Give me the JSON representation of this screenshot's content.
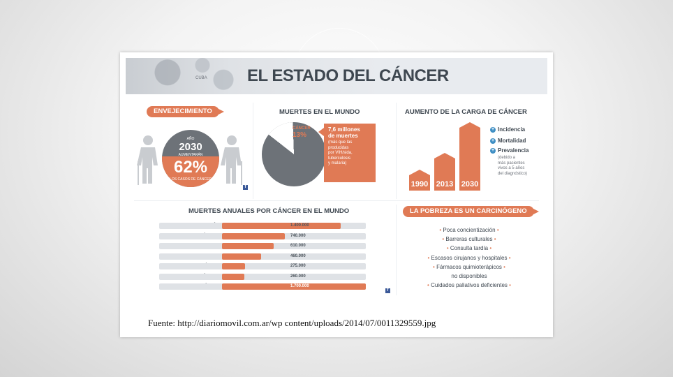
{
  "header": {
    "title": "EL ESTADO DEL CÁNCER",
    "map_label": "CUBA"
  },
  "aging": {
    "pill": "ENVEJECIMIENTO",
    "year_label": "AÑO",
    "year": "2030",
    "mid_label": "AUMENTARÁN",
    "percent": "62%",
    "bottom_label": "LOS CASOS DE CÁNCER"
  },
  "deaths_world": {
    "heading": "MUERTES EN EL MUNDO",
    "pie_label_1": "CÁNCER",
    "pie_label_2": "13%",
    "pie_share": 0.13,
    "callout_big": "7,6 millones\nde muertes",
    "callout_small": "(más que las\nproducidas\npor VIH/sida,\ntuberculosis\ny malaria)"
  },
  "burden": {
    "heading": "AUMENTO DE LA CARGA DE CÁNCER",
    "years": [
      "1990",
      "2013",
      "2030"
    ],
    "legend": [
      {
        "sign": "+",
        "label": "Incidencia"
      },
      {
        "sign": "+",
        "label": "Mortalidad"
      },
      {
        "sign": "+",
        "label": "Prevalencia"
      }
    ],
    "note": "(debido a\nmás pacientes\nvivos a 5 años\ndel diagnóstico)"
  },
  "annual_deaths": {
    "heading": "MUERTES ANUALES POR CÁNCER EN EL MUNDO",
    "max": 1700000,
    "rows": [
      {
        "label": "PULMÓN",
        "value": 1400000,
        "display": "1.400.000"
      },
      {
        "label": "ESTÓMAGO",
        "value": 740000,
        "display": "740.000"
      },
      {
        "label": "COLORECTAL",
        "value": 610000,
        "display": "610.000"
      },
      {
        "label": "MAMA",
        "value": 460000,
        "display": "460.000"
      },
      {
        "label": "CUELLO DE ÚTERO",
        "value": 275000,
        "display": "275.000"
      },
      {
        "label": "PRÓSTATA",
        "value": 260000,
        "display": "260.000"
      },
      {
        "label": "OTROS TIPOS DE CÁNCER",
        "value": 1700000,
        "display": "1.700.000"
      }
    ]
  },
  "poverty": {
    "pill": "LA POBREZA ES UN CARCINÓGENO",
    "items": [
      "Poca concientización",
      "Barreras culturales",
      "Consulta tardía",
      "Escasos cirujanos y hospitales",
      "Fármacos quimioterápicos",
      "no disponibles",
      "Cuidados paliativos deficientes"
    ]
  },
  "source": "Fuente: http://diariomovil.com.ar/wp content/uploads/2014/07/0011329559.jpg",
  "colors": {
    "accent": "#e07a55",
    "dark": "#6d7278",
    "text": "#3e4750"
  }
}
